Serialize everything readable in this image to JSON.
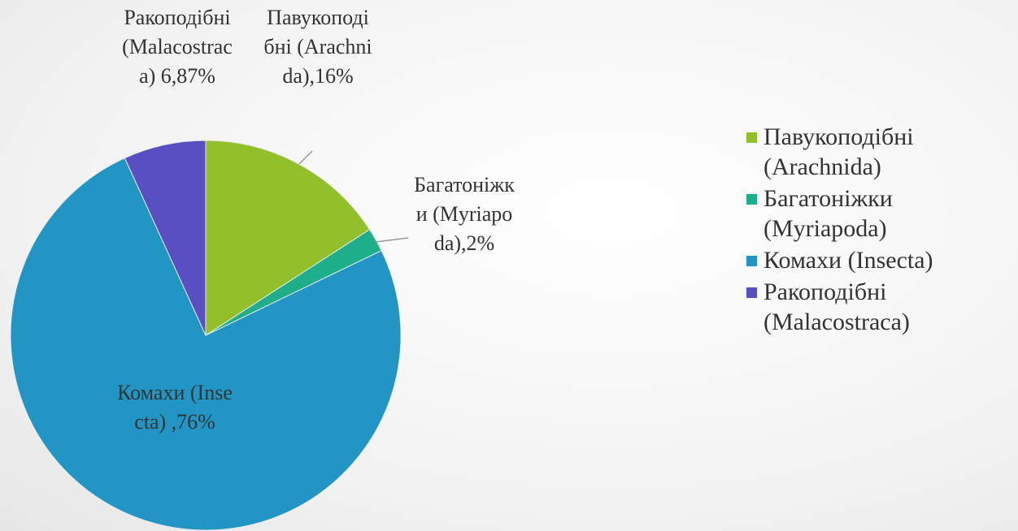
{
  "chart_data": {
    "type": "pie",
    "categories": [
      "Павукоподібні (Arachnida)",
      "Багатоніжки (Myriapoda)",
      "Комахи (Insecta)",
      "Ракоподібні (Malacostraca)"
    ],
    "values": [
      16,
      2,
      76,
      6.87
    ],
    "value_labels": [
      "Павукоподібні (Arachnida),16%",
      "Багатоніжки (Myriapoda),2%",
      "Комахи (Insecta) ,76%",
      "Ракоподібні (Malacostraca) 6,87%"
    ],
    "colors": [
      "#92c02a",
      "#1fae8a",
      "#2196c4",
      "#5a4fc2"
    ],
    "legend": "right"
  }
}
